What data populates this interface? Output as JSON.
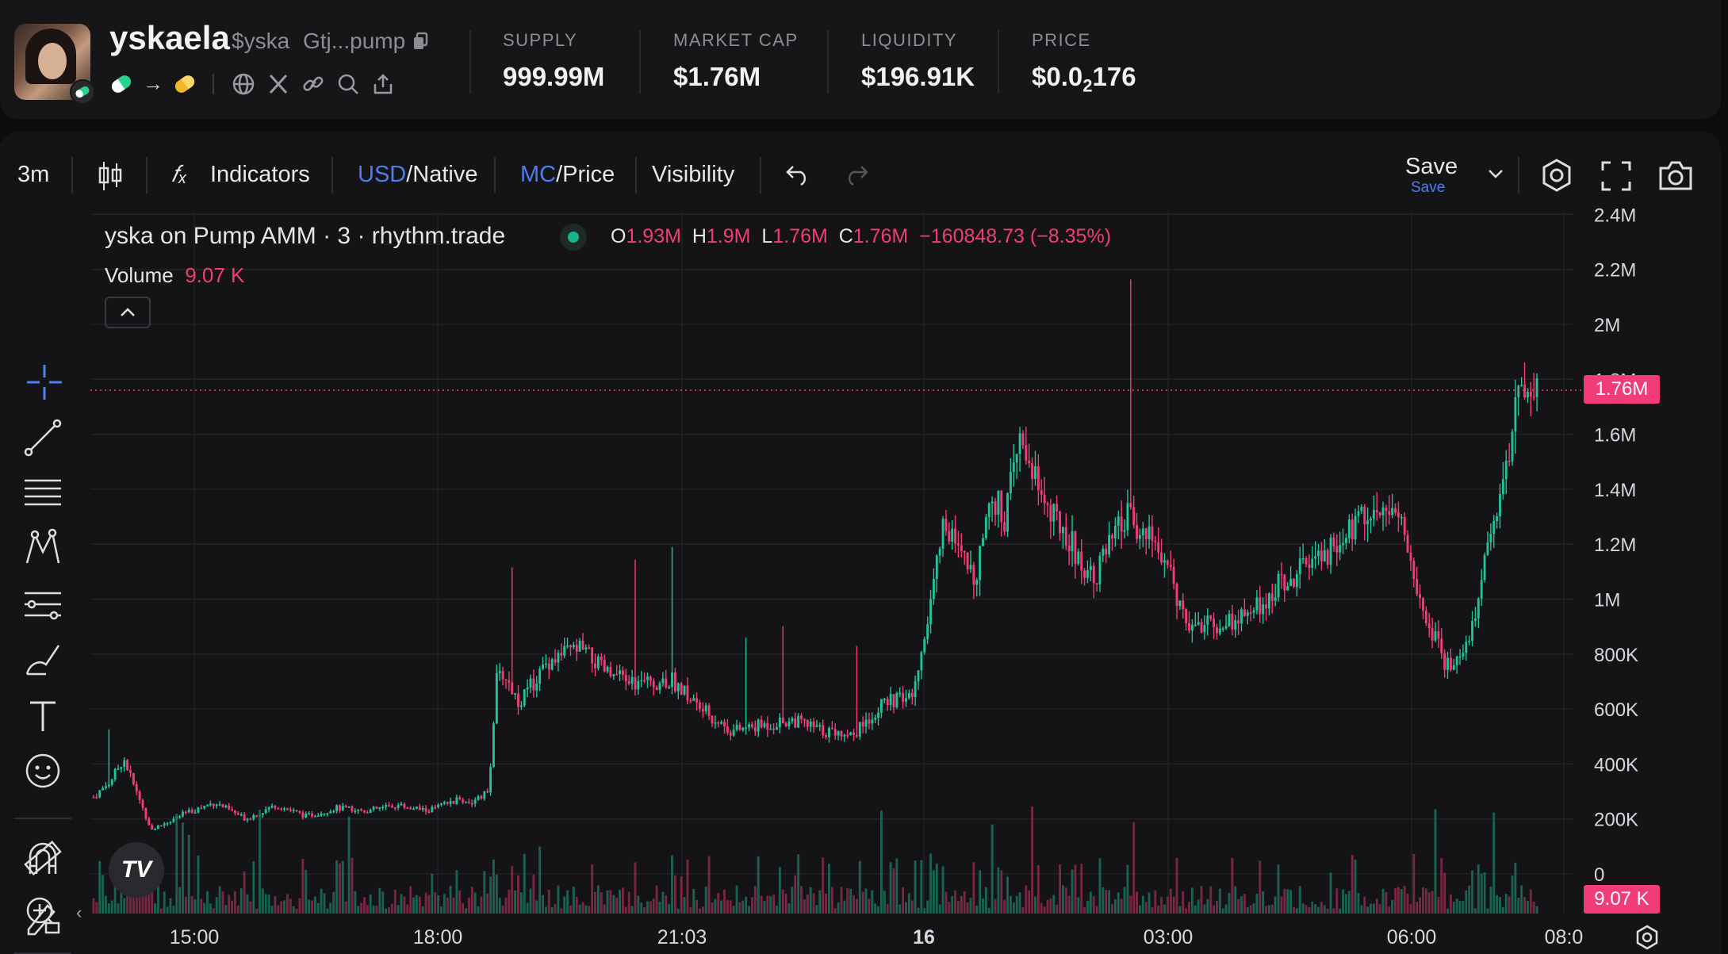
{
  "header": {
    "token_name": "yskaela",
    "ticker": "$yska",
    "address_short": "Gtj...pump",
    "stats": [
      {
        "label": "SUPPLY",
        "value": "999.99M"
      },
      {
        "label": "MARKET CAP",
        "value": "$1.76M"
      },
      {
        "label": "LIQUIDITY",
        "value": "$196.91K"
      },
      {
        "label": "PRICE",
        "value_prefix": "$0.0",
        "value_sub": "2",
        "value_suffix": "176"
      }
    ],
    "icons": [
      "pill-icon",
      "arrow-right-icon",
      "pill-icon",
      "globe-icon",
      "x-icon",
      "link-icon",
      "search-icon",
      "share-icon"
    ]
  },
  "toolbar": {
    "timeframe": "3m",
    "indicators": "Indicators",
    "usd": "USD",
    "native": "/Native",
    "mc": "MC",
    "price": "/Price",
    "visibility": "Visibility",
    "save": "Save",
    "save_sub": "Save"
  },
  "legend": {
    "title": "yska on Pump AMM · 3 · rhythm.trade",
    "o_label": "O",
    "o": "1.93M",
    "h_label": "H",
    "h": "1.9M",
    "l_label": "L",
    "l": "1.76M",
    "c_label": "C",
    "c": "1.76M",
    "change": "−160848.73 (−8.35%)",
    "volume_label": "Volume",
    "volume": "9.07 K"
  },
  "price_tag": "1.76M",
  "volume_tag": "9.07 K",
  "colors": {
    "up": "#22c29a",
    "down": "#f23c78",
    "accent": "#4b7cf0"
  },
  "chart_data": {
    "type": "candlestick",
    "y_ticks": [
      "2.4M",
      "2.2M",
      "2M",
      "1.8M",
      "1.6M",
      "1.4M",
      "1.2M",
      "1M",
      "800K",
      "600K",
      "400K",
      "200K",
      "0"
    ],
    "x_ticks": [
      "15:00",
      "18:00",
      "21:03",
      "16",
      "03:00",
      "06:00",
      "08:0"
    ],
    "ylim": [
      0,
      2400000
    ],
    "last_price": 1760000,
    "series_path": [
      [
        0,
        280000
      ],
      [
        10,
        330000
      ],
      [
        20,
        420000
      ],
      [
        28,
        300000
      ],
      [
        38,
        160000
      ],
      [
        60,
        220000
      ],
      [
        80,
        260000
      ],
      [
        100,
        200000
      ],
      [
        120,
        250000
      ],
      [
        140,
        210000
      ],
      [
        160,
        240000
      ],
      [
        180,
        230000
      ],
      [
        200,
        250000
      ],
      [
        220,
        230000
      ],
      [
        240,
        270000
      ],
      [
        250,
        260000
      ],
      [
        260,
        300000
      ],
      [
        265,
        700000
      ],
      [
        270,
        730000
      ],
      [
        280,
        620000
      ],
      [
        300,
        780000
      ],
      [
        320,
        820000
      ],
      [
        340,
        720000
      ],
      [
        360,
        690000
      ],
      [
        380,
        710000
      ],
      [
        400,
        600000
      ],
      [
        420,
        520000
      ],
      [
        440,
        540000
      ],
      [
        460,
        560000
      ],
      [
        480,
        520000
      ],
      [
        500,
        510000
      ],
      [
        520,
        620000
      ],
      [
        540,
        650000
      ],
      [
        560,
        1300000
      ],
      [
        570,
        1150000
      ],
      [
        580,
        1080000
      ],
      [
        590,
        1380000
      ],
      [
        600,
        1300000
      ],
      [
        610,
        1580000
      ],
      [
        620,
        1460000
      ],
      [
        630,
        1300000
      ],
      [
        640,
        1250000
      ],
      [
        650,
        1120000
      ],
      [
        660,
        1100000
      ],
      [
        680,
        1300000
      ],
      [
        700,
        1200000
      ],
      [
        720,
        920000
      ],
      [
        740,
        900000
      ],
      [
        760,
        940000
      ],
      [
        780,
        1050000
      ],
      [
        800,
        1120000
      ],
      [
        820,
        1200000
      ],
      [
        840,
        1350000
      ],
      [
        860,
        1300000
      ],
      [
        870,
        1050000
      ],
      [
        880,
        900000
      ],
      [
        890,
        760000
      ],
      [
        900,
        780000
      ],
      [
        910,
        960000
      ],
      [
        920,
        1250000
      ],
      [
        930,
        1500000
      ],
      [
        940,
        1800000
      ],
      [
        950,
        1760000
      ]
    ]
  }
}
